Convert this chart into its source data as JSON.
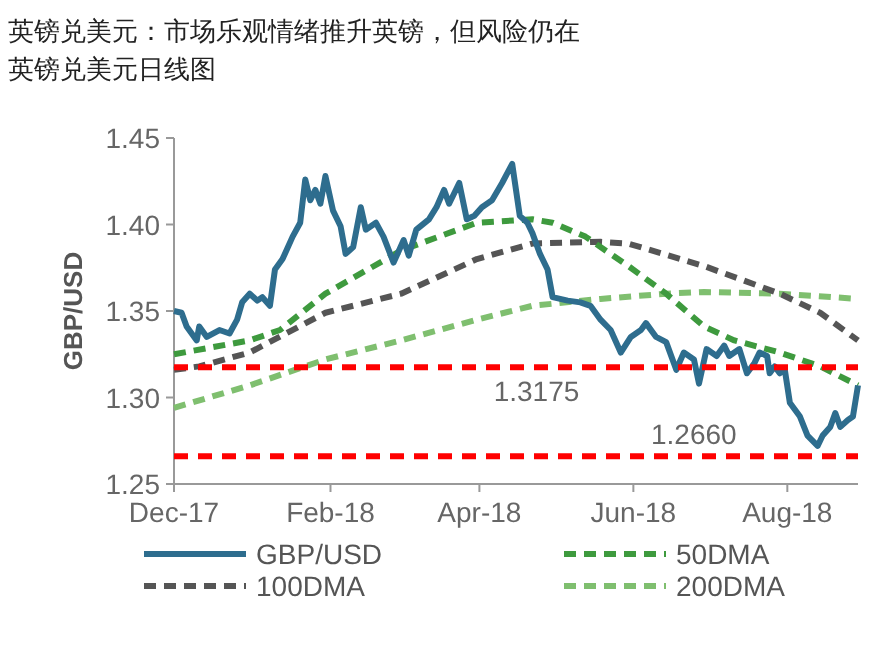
{
  "chart_data": {
    "type": "line",
    "title": "英镑兑美元：市场乐观情绪推升英镑，但风险仍在",
    "subtitle": "英镑兑美元日线图",
    "ylabel": "GBP/USD",
    "xlim": [
      "2017-12-01",
      "2018-08-29"
    ],
    "xticks": [
      {
        "value": "2017-12-01",
        "label": "Dec-17"
      },
      {
        "value": "2018-02-01",
        "label": "Feb-18"
      },
      {
        "value": "2018-04-01",
        "label": "Apr-18"
      },
      {
        "value": "2018-06-01",
        "label": "Jun-18"
      },
      {
        "value": "2018-08-01",
        "label": "Aug-18"
      }
    ],
    "ylim": [
      1.25,
      1.45
    ],
    "yticks": [
      1.25,
      {
        "value": 1.3,
        "label": "1.30"
      },
      1.35,
      {
        "value": 1.4,
        "label": "1.40"
      },
      1.45
    ],
    "grid": false,
    "legend": "bottom",
    "series": [
      {
        "name": "GBP/USD",
        "color": "#2e6d8e",
        "line_style": "solid",
        "x": [
          "2017-12-01",
          "2017-12-04",
          "2017-12-06",
          "2017-12-10",
          "2017-12-11",
          "2017-12-14",
          "2017-12-19",
          "2017-12-23",
          "2017-12-26",
          "2017-12-28",
          "2017-12-31",
          "2018-01-03",
          "2018-01-05",
          "2018-01-08",
          "2018-01-10",
          "2018-01-13",
          "2018-01-17",
          "2018-01-20",
          "2018-01-22",
          "2018-01-24",
          "2018-01-26",
          "2018-01-28",
          "2018-01-30",
          "2018-02-02",
          "2018-02-05",
          "2018-02-07",
          "2018-02-10",
          "2018-02-13",
          "2018-02-15",
          "2018-02-19",
          "2018-02-22",
          "2018-02-26",
          "2018-03-02",
          "2018-03-04",
          "2018-03-07",
          "2018-03-12",
          "2018-03-15",
          "2018-03-18",
          "2018-03-20",
          "2018-03-24",
          "2018-03-27",
          "2018-03-30",
          "2018-04-02",
          "2018-04-06",
          "2018-04-10",
          "2018-04-14",
          "2018-04-17",
          "2018-04-20",
          "2018-04-22",
          "2018-04-25",
          "2018-04-28",
          "2018-04-30",
          "2018-05-06",
          "2018-05-11",
          "2018-05-15",
          "2018-05-19",
          "2018-05-23",
          "2018-05-27",
          "2018-05-31",
          "2018-06-04",
          "2018-06-06",
          "2018-06-10",
          "2018-06-14",
          "2018-06-18",
          "2018-06-21",
          "2018-06-25",
          "2018-06-27",
          "2018-06-30",
          "2018-07-04",
          "2018-07-07",
          "2018-07-09",
          "2018-07-13",
          "2018-07-16",
          "2018-07-19",
          "2018-07-21",
          "2018-07-24",
          "2018-07-25",
          "2018-07-27",
          "2018-07-29",
          "2018-07-31",
          "2018-08-02",
          "2018-08-06",
          "2018-08-09",
          "2018-08-13",
          "2018-08-15",
          "2018-08-18",
          "2018-08-20",
          "2018-08-22",
          "2018-08-25",
          "2018-08-27",
          "2018-08-29"
        ],
        "values": [
          1.35,
          1.349,
          1.341,
          1.333,
          1.341,
          1.335,
          1.339,
          1.337,
          1.345,
          1.355,
          1.36,
          1.356,
          1.358,
          1.353,
          1.374,
          1.38,
          1.393,
          1.401,
          1.426,
          1.414,
          1.42,
          1.412,
          1.428,
          1.408,
          1.399,
          1.383,
          1.387,
          1.41,
          1.397,
          1.401,
          1.393,
          1.378,
          1.391,
          1.382,
          1.397,
          1.403,
          1.41,
          1.42,
          1.412,
          1.424,
          1.403,
          1.405,
          1.41,
          1.414,
          1.424,
          1.435,
          1.405,
          1.401,
          1.395,
          1.383,
          1.374,
          1.358,
          1.356,
          1.355,
          1.353,
          1.345,
          1.339,
          1.326,
          1.335,
          1.339,
          1.343,
          1.335,
          1.332,
          1.316,
          1.326,
          1.322,
          1.308,
          1.328,
          1.324,
          1.33,
          1.324,
          1.328,
          1.314,
          1.32,
          1.326,
          1.324,
          1.314,
          1.318,
          1.314,
          1.316,
          1.297,
          1.289,
          1.278,
          1.272,
          1.278,
          1.283,
          1.291,
          1.283,
          1.287,
          1.289,
          1.307
        ]
      },
      {
        "name": "50DMA",
        "color": "#3e9a3e",
        "line_style": "dashed",
        "x": [
          "2017-12-01",
          "2017-12-31",
          "2018-01-12",
          "2018-01-30",
          "2018-03-01",
          "2018-03-31",
          "2018-04-22",
          "2018-04-30",
          "2018-05-13",
          "2018-05-30",
          "2018-06-14",
          "2018-06-29",
          "2018-07-11",
          "2018-07-29",
          "2018-08-14",
          "2018-08-29"
        ],
        "values": [
          1.325,
          1.333,
          1.339,
          1.36,
          1.385,
          1.401,
          1.403,
          1.401,
          1.393,
          1.376,
          1.36,
          1.341,
          1.333,
          1.326,
          1.318,
          1.307
        ]
      },
      {
        "name": "100DMA",
        "color": "#555555",
        "line_style": "dashed",
        "x": [
          "2017-12-01",
          "2017-12-11",
          "2017-12-31",
          "2018-01-30",
          "2018-03-01",
          "2018-03-31",
          "2018-04-22",
          "2018-05-19",
          "2018-05-30",
          "2018-06-29",
          "2018-07-29",
          "2018-08-14",
          "2018-08-29"
        ],
        "values": [
          1.316,
          1.318,
          1.326,
          1.349,
          1.36,
          1.38,
          1.389,
          1.39,
          1.389,
          1.376,
          1.36,
          1.349,
          1.333
        ]
      },
      {
        "name": "200DMA",
        "color": "#7fbf6f",
        "line_style": "dashed",
        "x": [
          "2017-12-01",
          "2017-12-31",
          "2018-01-30",
          "2018-03-01",
          "2018-03-31",
          "2018-04-22",
          "2018-05-19",
          "2018-06-14",
          "2018-06-29",
          "2018-07-29",
          "2018-08-29"
        ],
        "values": [
          1.294,
          1.307,
          1.322,
          1.333,
          1.345,
          1.353,
          1.357,
          1.36,
          1.361,
          1.36,
          1.357
        ]
      }
    ],
    "ref_lines": [
      {
        "axis": "y",
        "value": 1.3175,
        "label": "1.3175",
        "color": "#ff0000",
        "line_style": "dashed"
      },
      {
        "axis": "y",
        "value": 1.266,
        "label": "1.2660",
        "color": "#ff0000",
        "line_style": "dashed"
      }
    ]
  }
}
